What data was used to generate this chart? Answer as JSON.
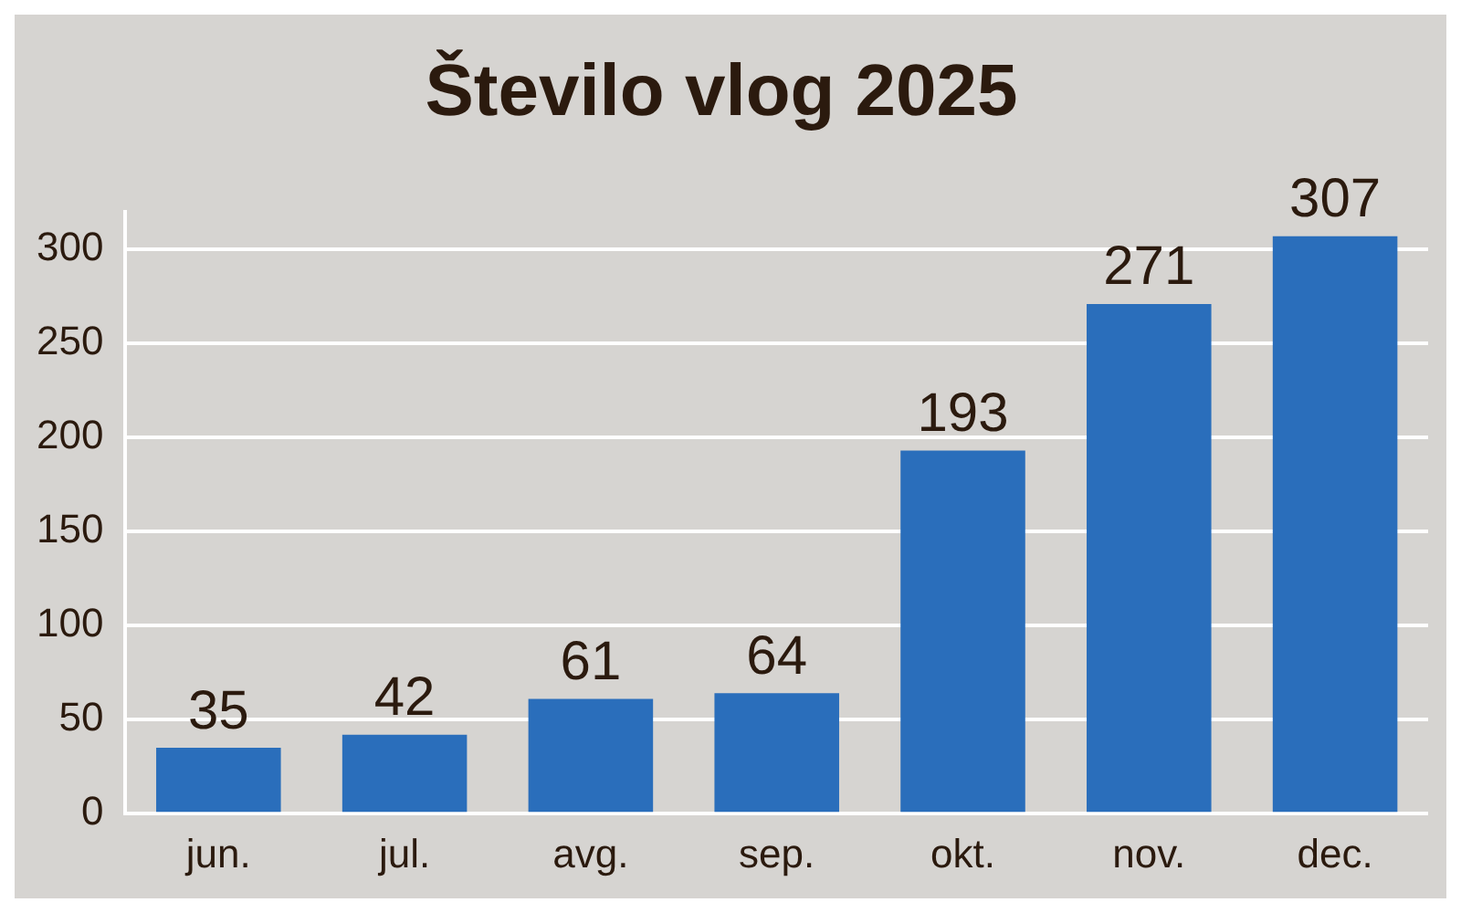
{
  "chart_data": {
    "type": "bar",
    "title": "Število vlog 2025",
    "categories": [
      "jun.",
      "jul.",
      "avg.",
      "sep.",
      "okt.",
      "nov.",
      "dec."
    ],
    "values": [
      35,
      42,
      61,
      64,
      193,
      271,
      307
    ],
    "color": "#2a6ebb",
    "ylim": [
      0,
      320
    ],
    "yticks": [
      0,
      50,
      100,
      150,
      200,
      250,
      300
    ],
    "grid": "y",
    "data_labels": true,
    "legend": false
  }
}
